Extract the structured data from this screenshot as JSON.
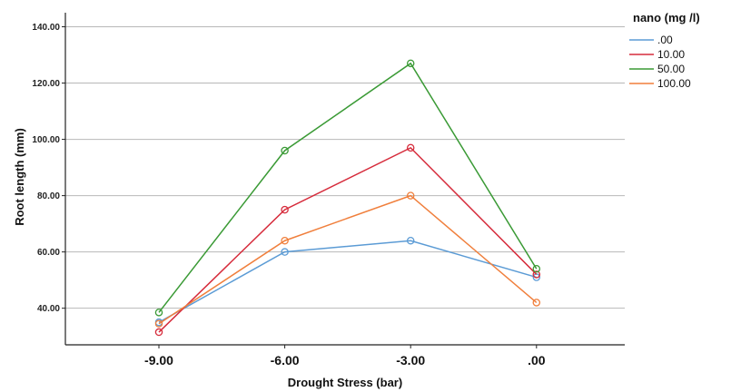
{
  "chart_data": {
    "type": "line",
    "xlabel": "Drought Stress (bar)",
    "ylabel": "Root length (mm)",
    "categories": [
      "-9.00",
      "-6.00",
      "-3.00",
      ".00"
    ],
    "y_ticks": [
      "40.00",
      "60.00",
      "80.00",
      "100.00",
      "120.00",
      "140.00"
    ],
    "ylim": [
      27,
      145
    ],
    "grid": "horizontal",
    "legend": {
      "title": "nano (mg /l)",
      "position": "right"
    },
    "series": [
      {
        "name": ".00",
        "color": "#5b9bd5",
        "values": [
          35,
          60,
          64,
          51
        ]
      },
      {
        "name": "10.00",
        "color": "#d62b3b",
        "values": [
          31.5,
          75,
          97,
          52
        ]
      },
      {
        "name": "50.00",
        "color": "#3a9a35",
        "values": [
          38.5,
          96,
          127,
          54
        ]
      },
      {
        "name": "100.00",
        "color": "#f07f3c",
        "values": [
          34.5,
          64,
          80,
          42
        ]
      }
    ]
  }
}
